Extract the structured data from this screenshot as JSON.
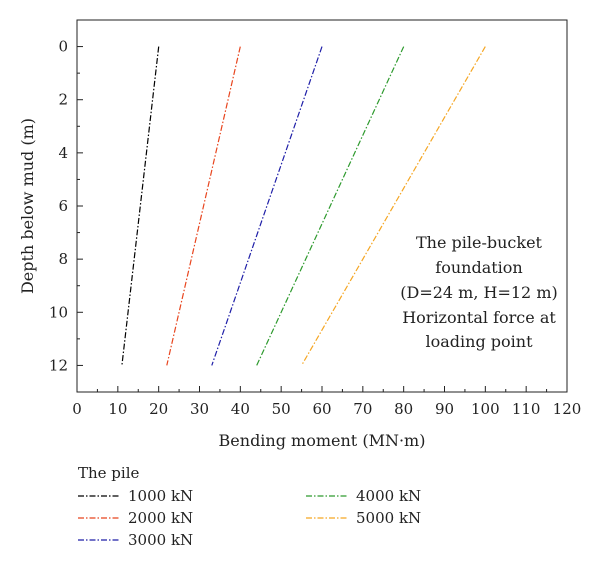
{
  "chart_data": {
    "type": "line",
    "xlabel": "Bending moment (MN·m)",
    "ylabel": "Depth below mud (m)",
    "xlim": [
      0,
      120
    ],
    "ylim": [
      13,
      -1
    ],
    "y_inverted": true,
    "x_ticks": [
      "0",
      "10",
      "20",
      "30",
      "40",
      "50",
      "60",
      "70",
      "80",
      "90",
      "100",
      "110",
      "120"
    ],
    "y_ticks": [
      "0",
      "2",
      "4",
      "6",
      "8",
      "10",
      "12"
    ],
    "grid": false,
    "line_style": "dash-dot",
    "annotation": [
      "The pile-bucket",
      "foundation",
      "(D=24 m, H=12 m)",
      "Horizontal force at",
      "loading point"
    ],
    "legend": {
      "title": "The pile",
      "placement": "bottom"
    },
    "series": [
      {
        "name": "1000 kN",
        "color": "#000000",
        "x": [
          20,
          11
        ],
        "y": [
          0,
          12
        ]
      },
      {
        "name": "2000 kN",
        "color": "#e8451e",
        "x": [
          40,
          22
        ],
        "y": [
          0,
          12
        ]
      },
      {
        "name": "3000 kN",
        "color": "#1f1fa8",
        "x": [
          60,
          33
        ],
        "y": [
          0,
          12
        ]
      },
      {
        "name": "4000 kN",
        "color": "#2e9a2e",
        "x": [
          80,
          44
        ],
        "y": [
          0,
          12
        ]
      },
      {
        "name": "5000 kN",
        "color": "#f5a623",
        "x": [
          100,
          55
        ],
        "y": [
          0,
          12
        ]
      }
    ]
  }
}
